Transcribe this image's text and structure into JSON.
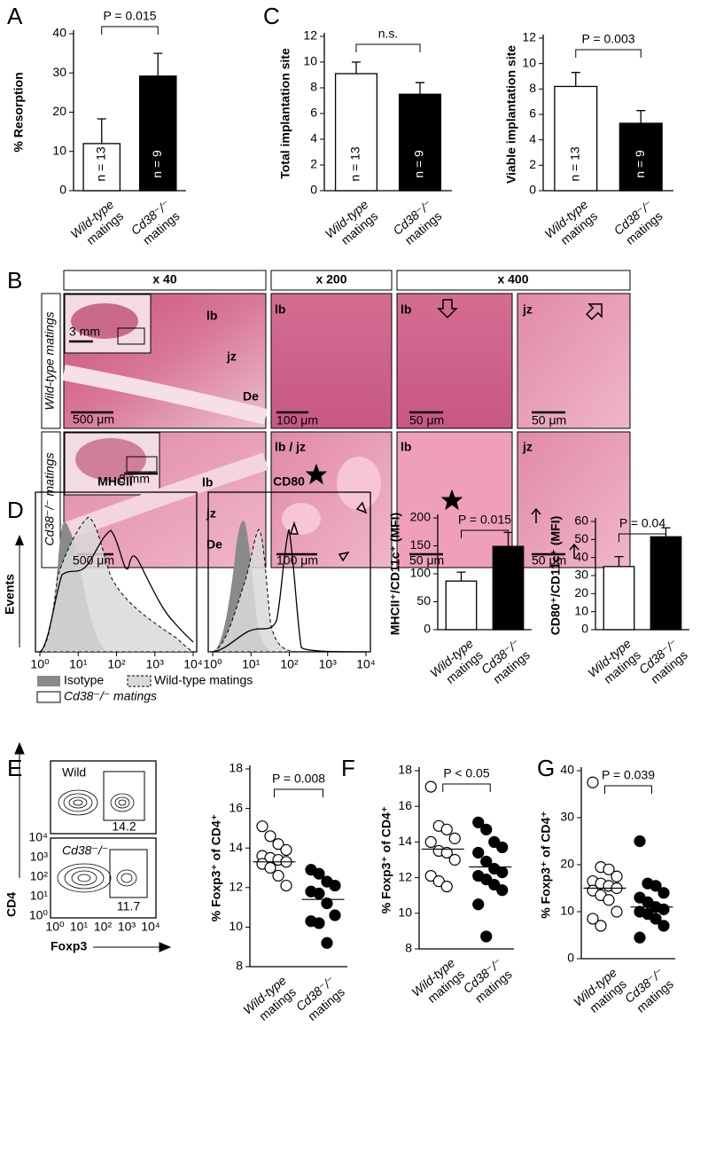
{
  "panel_labels": [
    "A",
    "B",
    "C",
    "D",
    "E",
    "F",
    "G"
  ],
  "histology": {
    "magnifications": [
      "x 40",
      "x 200",
      "x 400"
    ],
    "rows": [
      "Wild-type matings",
      "Cd38⁻/⁻ matings"
    ],
    "image_labels": [
      "3 mm",
      "lb",
      "jz",
      "De",
      "500 μm",
      "lb",
      "100 μm",
      "lb",
      "50 μm",
      "jz",
      "50 μm",
      "3 mm",
      "lb",
      "jz",
      "De",
      "500 μm",
      "lb / jz",
      "100 μm",
      "lb",
      "50 μm",
      "jz",
      "50 μm"
    ]
  },
  "flow": {
    "titles": [
      "MHCII",
      "CD80"
    ],
    "y_label": "Events",
    "x_tick_labels": [
      "10⁰",
      "10¹",
      "10²",
      "10³",
      "10⁴"
    ],
    "legend": [
      "Isotype",
      "Wild-type matings",
      "Cd38⁻/⁻ matings"
    ]
  },
  "contour": {
    "samples": [
      "Wild",
      "Cd38⁻/⁻"
    ],
    "gate_percent": [
      14.2,
      11.7
    ],
    "x_label": "Foxp3",
    "y_label": "CD4",
    "tick_labels": [
      "10⁰",
      "10¹",
      "10²",
      "10³",
      "10⁴"
    ]
  },
  "chart_data": [
    {
      "type": "bar",
      "categories": [
        "Wild-type matings",
        "Cd38⁻/⁻ matings"
      ],
      "values": [
        12,
        29.2
      ],
      "errors": [
        6.3,
        5.8
      ],
      "colors": [
        "#ffffff",
        "#000000"
      ],
      "bar_labels": [
        "n = 13",
        "n = 9"
      ],
      "y_label": "% Resorption",
      "annotation": "P = 0.015",
      "ylim": [
        0,
        40
      ],
      "yticks": [
        0,
        10,
        20,
        30,
        40
      ]
    },
    {
      "type": "bar",
      "categories": [
        "Wild-type matings",
        "Cd38⁻/⁻ matings"
      ],
      "values": [
        9.1,
        7.5
      ],
      "errors": [
        0.9,
        0.9
      ],
      "colors": [
        "#ffffff",
        "#000000"
      ],
      "bar_labels": [
        "n = 13",
        "n = 9"
      ],
      "y_label": "Total implantation site",
      "annotation": "n.s.",
      "ylim": [
        0,
        12
      ],
      "yticks": [
        0,
        2,
        4,
        6,
        8,
        10,
        12
      ]
    },
    {
      "type": "bar",
      "categories": [
        "Wild-type matings",
        "Cd38⁻/⁻ matings"
      ],
      "values": [
        8.2,
        5.3
      ],
      "errors": [
        1.1,
        1.0
      ],
      "colors": [
        "#ffffff",
        "#000000"
      ],
      "bar_labels": [
        "n = 13",
        "n = 9"
      ],
      "y_label": "Viable implantation site",
      "annotation": "P = 0.003",
      "ylim": [
        0,
        12
      ],
      "yticks": [
        0,
        2,
        4,
        6,
        8,
        10,
        12
      ]
    },
    {
      "type": "bar",
      "categories": [
        "Wild-type matings",
        "Cd38⁻/⁻ matings"
      ],
      "values": [
        87,
        149
      ],
      "errors": [
        16,
        25
      ],
      "colors": [
        "#ffffff",
        "#000000"
      ],
      "y_label": "MHCII⁺/CD11c⁺ (MFI)",
      "annotation": "P = 0.015",
      "ylim": [
        0,
        200
      ],
      "yticks": [
        0,
        50,
        100,
        150,
        200
      ]
    },
    {
      "type": "bar",
      "categories": [
        "Wild-type matings",
        "Cd38⁻/⁻ matings"
      ],
      "values": [
        35,
        51.5
      ],
      "errors": [
        5.5,
        5
      ],
      "colors": [
        "#ffffff",
        "#000000"
      ],
      "y_label": "CD80⁺/CD11c⁺ (MFI)",
      "annotation": "P = 0.04",
      "ylim": [
        0,
        60
      ],
      "yticks": [
        0,
        10,
        20,
        30,
        40,
        50,
        60
      ]
    },
    {
      "type": "strip",
      "categories": [
        "Wild-type matings",
        "Cd38⁻/⁻ matings"
      ],
      "values": [
        [
          15.1,
          14.6,
          14.2,
          13.9,
          13.6,
          13.5,
          13.4,
          13.3,
          13.2,
          13.0,
          12.6,
          12.1
        ],
        [
          12.9,
          12.7,
          12.3,
          12.1,
          11.8,
          11.7,
          11.2,
          10.6,
          10.3,
          10.2,
          9.2
        ]
      ],
      "means": [
        13.3,
        11.4
      ],
      "colors": [
        "#ffffff",
        "#000000"
      ],
      "y_label": "% Foxp3⁺ of CD4⁺",
      "annotation": "P = 0.008",
      "ylim": [
        8,
        18
      ],
      "yticks": [
        8,
        10,
        12,
        14,
        16,
        18
      ]
    },
    {
      "type": "strip",
      "categories": [
        "Wild-type matings",
        "Cd38⁻/⁻ matings"
      ],
      "values": [
        [
          17.1,
          14.9,
          14.7,
          14.2,
          14.0,
          13.5,
          13.4,
          13.0,
          12.1,
          11.8,
          11.5
        ],
        [
          15.1,
          14.7,
          14.0,
          13.7,
          13.4,
          12.9,
          12.5,
          12.3,
          12.1,
          11.9,
          11.6,
          11.3,
          10.5,
          8.7
        ]
      ],
      "means": [
        13.6,
        12.6
      ],
      "colors": [
        "#ffffff",
        "#000000"
      ],
      "y_label": "% Foxp3⁺ of CD4⁺",
      "annotation": "P < 0.05",
      "ylim": [
        8,
        18
      ],
      "yticks": [
        8,
        10,
        12,
        14,
        16,
        18
      ]
    },
    {
      "type": "strip",
      "categories": [
        "Wild-type matings",
        "Cd38⁻/⁻ matings"
      ],
      "values": [
        [
          37.5,
          19.5,
          19,
          17.5,
          16.5,
          16,
          15.5,
          15,
          14.5,
          13.5,
          12.5,
          10,
          8.5,
          7
        ],
        [
          25,
          16,
          15.5,
          14,
          13,
          12,
          11,
          10.5,
          10,
          9.5,
          8.5,
          7,
          4.5
        ]
      ],
      "means": [
        15,
        11
      ],
      "colors": [
        "#ffffff",
        "#000000"
      ],
      "y_label": "% Foxp3⁺ of CD4⁺",
      "annotation": "P = 0.039",
      "ylim": [
        0,
        40
      ],
      "yticks": [
        0,
        10,
        20,
        30,
        40
      ]
    }
  ]
}
